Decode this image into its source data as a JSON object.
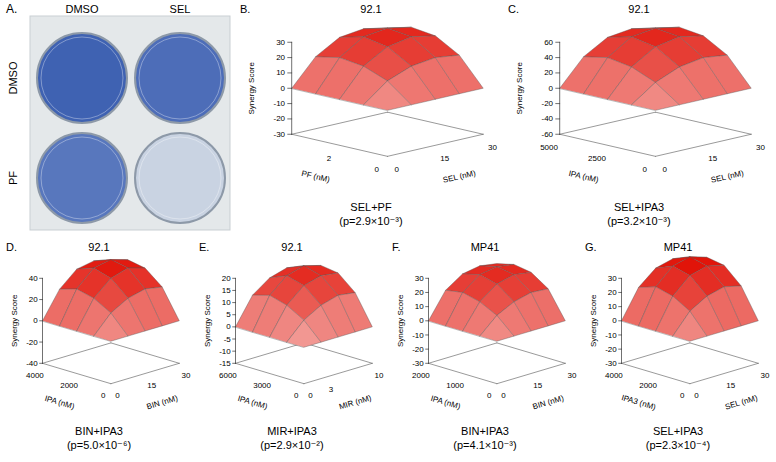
{
  "image_panel": {
    "label": "A.",
    "columns": [
      "DMSO",
      "SEL"
    ],
    "rows": [
      "DMSO",
      "PF"
    ]
  },
  "chart_data": [
    {
      "type": "surface",
      "panel": "B.",
      "title": "92.1",
      "caption": [
        "SEL+PF",
        "(p=2.9×10⁻³)"
      ],
      "x_label": "SEL (nM)",
      "y_label": "PF (nM)",
      "z_label": "Synergy Score",
      "xlim": [
        0,
        30
      ],
      "xticks": [
        0,
        15,
        30
      ],
      "ylim": [
        0,
        4
      ],
      "yticks": [
        0,
        2
      ],
      "zlim": [
        -30,
        30
      ],
      "zticks": [
        -30,
        -20,
        -10,
        0,
        10,
        20,
        30
      ],
      "x": [
        0,
        7.5,
        15,
        22.5,
        30
      ],
      "y": [
        0,
        1,
        2,
        3,
        4
      ],
      "z": [
        [
          0,
          0,
          0,
          0,
          0
        ],
        [
          0,
          12,
          18,
          20,
          18
        ],
        [
          0,
          18,
          27,
          30,
          27
        ],
        [
          0,
          20,
          30,
          32,
          29
        ],
        [
          0,
          17,
          26,
          28,
          25
        ]
      ]
    },
    {
      "type": "surface",
      "panel": "C.",
      "title": "92.1",
      "caption": [
        "SEL+IPA3",
        "(p=3.2×10⁻³)"
      ],
      "x_label": "SEL (nM)",
      "y_label": "IPA (nM)",
      "z_label": "Synergy Score",
      "xlim": [
        0,
        30
      ],
      "xticks": [
        0,
        15,
        30
      ],
      "ylim": [
        0,
        5000
      ],
      "yticks": [
        0,
        2500,
        5000
      ],
      "zlim": [
        -60,
        60
      ],
      "zticks": [
        -60,
        -40,
        -20,
        0,
        20,
        40,
        60
      ],
      "x": [
        0,
        7.5,
        15,
        22.5,
        30
      ],
      "y": [
        0,
        1250,
        2500,
        3750,
        5000
      ],
      "z": [
        [
          0,
          0,
          0,
          0,
          0
        ],
        [
          0,
          22,
          35,
          40,
          36
        ],
        [
          0,
          35,
          54,
          60,
          54
        ],
        [
          0,
          40,
          60,
          64,
          58
        ],
        [
          0,
          34,
          52,
          56,
          50
        ]
      ]
    },
    {
      "type": "surface",
      "panel": "D.",
      "title": "92.1",
      "caption": [
        "BIN+IPA3",
        "(p=5.0×10⁻⁶)"
      ],
      "x_label": "BIN (nM)",
      "y_label": "IPA (nM)",
      "z_label": "Synergy Score",
      "xlim": [
        0,
        30
      ],
      "xticks": [
        0,
        15,
        30
      ],
      "ylim": [
        0,
        4000
      ],
      "yticks": [
        0,
        2000,
        4000
      ],
      "zlim": [
        -40,
        40
      ],
      "zticks": [
        -40,
        -20,
        0,
        20,
        40
      ],
      "x": [
        0,
        7.5,
        15,
        22.5,
        30
      ],
      "y": [
        0,
        1000,
        2000,
        3000,
        4000
      ],
      "z": [
        [
          0,
          0,
          0,
          0,
          0
        ],
        [
          0,
          17,
          26,
          30,
          27
        ],
        [
          0,
          26,
          40,
          45,
          40
        ],
        [
          0,
          30,
          45,
          48,
          43
        ],
        [
          0,
          25,
          39,
          42,
          37
        ]
      ]
    },
    {
      "type": "surface",
      "panel": "E.",
      "title": "92.1",
      "caption": [
        "MIR+IPA3",
        "(p=2.9×10⁻²)"
      ],
      "x_label": "MIR (nM)",
      "y_label": "IPA (nM)",
      "z_label": "Synergy Score",
      "xlim": [
        0,
        10
      ],
      "xticks": [
        0,
        3,
        10
      ],
      "ylim": [
        0,
        6000
      ],
      "yticks": [
        0,
        3000,
        6000
      ],
      "zlim": [
        -15,
        20
      ],
      "zticks": [
        -15,
        -10,
        -5,
        0,
        5,
        10,
        15,
        20
      ],
      "x": [
        0,
        2.5,
        5,
        7.5,
        10
      ],
      "y": [
        0,
        1500,
        3000,
        4500,
        6000
      ],
      "z": [
        [
          0,
          0,
          0,
          0,
          0
        ],
        [
          0,
          7,
          11,
          13,
          12
        ],
        [
          0,
          11,
          17,
          19,
          18
        ],
        [
          0,
          13,
          19,
          21,
          19
        ],
        [
          0,
          11,
          16,
          18,
          16
        ]
      ]
    },
    {
      "type": "surface",
      "panel": "F.",
      "title": "MP41",
      "caption": [
        "BIN+IPA3",
        "(p=4.1×10⁻³)"
      ],
      "x_label": "BIN (nM)",
      "y_label": "IPA (nM)",
      "z_label": "Synergy Score",
      "xlim": [
        0,
        30
      ],
      "xticks": [
        0,
        15,
        30
      ],
      "ylim": [
        0,
        2000
      ],
      "yticks": [
        0,
        1000,
        2000
      ],
      "zlim": [
        -30,
        30
      ],
      "zticks": [
        -30,
        -20,
        -10,
        0,
        10,
        20,
        30
      ],
      "x": [
        0,
        7.5,
        15,
        22.5,
        30
      ],
      "y": [
        0,
        500,
        1000,
        1500,
        2000
      ],
      "z": [
        [
          0,
          0,
          0,
          0,
          0
        ],
        [
          0,
          11,
          17,
          20,
          19
        ],
        [
          0,
          17,
          26,
          29,
          27
        ],
        [
          0,
          20,
          29,
          31,
          29
        ],
        [
          0,
          18,
          26,
          28,
          26
        ]
      ]
    },
    {
      "type": "surface",
      "panel": "G.",
      "title": "MP41",
      "caption": [
        "SEL+IPA3",
        "(p=2.3×10⁻⁴)"
      ],
      "x_label": "SEL (nM)",
      "y_label": "IPA3 (nM)",
      "z_label": "Synergy Score",
      "xlim": [
        0,
        30
      ],
      "xticks": [
        0,
        15,
        30
      ],
      "ylim": [
        0,
        4000
      ],
      "yticks": [
        0,
        2000,
        4000
      ],
      "zlim": [
        -30,
        30
      ],
      "zticks": [
        -30,
        -20,
        -10,
        0,
        10,
        20,
        30
      ],
      "x": [
        0,
        7.5,
        15,
        22.5,
        30
      ],
      "y": [
        0,
        1000,
        2000,
        3000,
        4000
      ],
      "z": [
        [
          0,
          0,
          0,
          0,
          0
        ],
        [
          0,
          14,
          21,
          24,
          21
        ],
        [
          0,
          21,
          32,
          35,
          32
        ],
        [
          0,
          24,
          35,
          38,
          34
        ],
        [
          0,
          20,
          30,
          33,
          29
        ]
      ]
    }
  ]
}
